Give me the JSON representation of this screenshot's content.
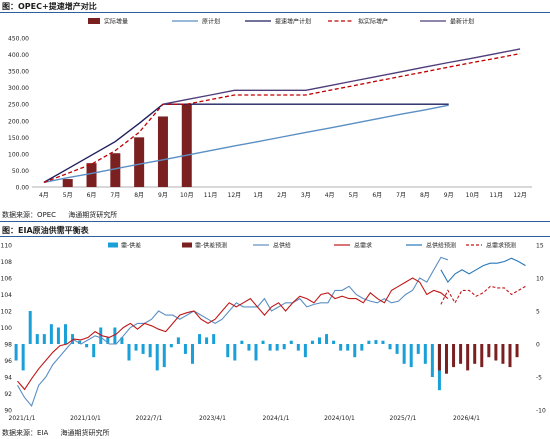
{
  "charts": {
    "top": {
      "title": "图：OPEC+提速增产对比",
      "source_label": "数据来源：OPEC",
      "source_org": "海通期货研究所"
    },
    "bottom": {
      "title": "图：EIA原油供需平衡表",
      "source_label": "数据来源：EIA",
      "source_org": "海通期货研究所"
    }
  },
  "colors": {
    "maroon": "#7b2020",
    "light_blue": "#5b8fc3",
    "navy": "#1f1f5f",
    "red_dash": "#c00000",
    "purple": "#4e3d7a",
    "cyan": "#1aa0d8",
    "red": "#c01818",
    "blue_line": "#2878b8"
  },
  "chart_data": [
    {
      "type": "bar+line",
      "categories": [
        "4月",
        "5月",
        "6月",
        "7月",
        "8月",
        "9月",
        "10月",
        "11月",
        "12月",
        "1月",
        "2月",
        "3月",
        "4月",
        "5月",
        "6月",
        "7月",
        "8月",
        "9月",
        "10月",
        "11月",
        "12月"
      ],
      "ylim": [
        0,
        450
      ],
      "yticks": [
        "0.00",
        "50.00",
        "100.00",
        "150.00",
        "200.00",
        "250.00",
        "300.00",
        "350.00",
        "400.00",
        "450.00"
      ],
      "legend": [
        "实际增量",
        "原计划",
        "提速增产计划",
        "拟实际增产",
        "最新计划"
      ],
      "series": [
        {
          "name": "实际增量",
          "kind": "bar",
          "values": [
            null,
            24,
            72,
            102,
            150,
            213,
            250,
            null,
            null,
            null,
            null,
            null,
            null,
            null,
            null,
            null,
            null,
            null,
            null,
            null,
            null
          ]
        },
        {
          "name": "原计划",
          "kind": "line",
          "values": [
            14,
            28,
            41,
            55,
            69,
            82,
            96,
            110,
            124,
            137,
            151,
            165,
            178,
            192,
            206,
            220,
            233,
            247,
            null,
            null,
            null
          ]
        },
        {
          "name": "提速增产计划",
          "kind": "line",
          "values": [
            14,
            55,
            96,
            137,
            192,
            250,
            250,
            250,
            250,
            250,
            250,
            250,
            250,
            250,
            250,
            250,
            250,
            250,
            null,
            null,
            null
          ]
        },
        {
          "name": "拟实际增产",
          "kind": "dashed",
          "values": [
            14,
            41,
            69,
            110,
            165,
            250,
            250,
            264,
            278,
            278,
            278,
            278,
            292,
            306,
            320,
            334,
            348,
            362,
            376,
            389,
            403
          ]
        },
        {
          "name": "最新计划",
          "kind": "line",
          "values": [
            null,
            null,
            null,
            null,
            null,
            250,
            264,
            278,
            292,
            292,
            292,
            292,
            306,
            320,
            334,
            348,
            362,
            376,
            389,
            403,
            417
          ]
        }
      ]
    },
    {
      "type": "bar+line",
      "x_labels": [
        "2021/1/1",
        "2021/10/1",
        "2022/7/1",
        "2023/4/1",
        "2024/1/1",
        "2024/10/1",
        "2025/7/1",
        "2026/4/1"
      ],
      "ylim": [
        90,
        110
      ],
      "y2lim": [
        -10,
        15
      ],
      "yticks": [
        "90",
        "92",
        "94",
        "96",
        "98",
        "100",
        "102",
        "104",
        "106",
        "108",
        "110"
      ],
      "y2ticks": [
        "-10",
        "-5",
        "0",
        "5",
        "10",
        "15"
      ],
      "legend": [
        "需-供差",
        "需-供差预测",
        "总供给",
        "总需求",
        "总供给预测",
        "总需求预测"
      ],
      "series": [
        {
          "name": "需-供差",
          "kind": "bar",
          "axis": "right",
          "start": "2021/1",
          "values": [
            -2.5,
            -4,
            5,
            1.5,
            1.5,
            3,
            2.5,
            3,
            1.5,
            0.5,
            -0.5,
            -2,
            2.5,
            1,
            2.5,
            1,
            -2.5,
            -1,
            -1.5,
            -2,
            -4,
            -3.5,
            -0.5,
            1,
            -1.5,
            -3,
            1.5,
            1,
            1.5,
            0,
            -2,
            -2.5,
            0.5,
            -1,
            -2.5,
            0.5,
            -1,
            -1,
            -0.8,
            0.5,
            -1,
            -2,
            0.5,
            1,
            1.5,
            0.5,
            -1,
            -1,
            -2,
            -1,
            0.5,
            0.6,
            0.5,
            -0.8,
            -1.5,
            -3,
            -3.5,
            -1.5,
            -3,
            -5,
            -7
          ]
        },
        {
          "name": "需-供差预测",
          "kind": "bar",
          "axis": "right",
          "start": "2026/1",
          "values": [
            -4,
            -4.5,
            -3.5,
            -3,
            -4,
            -3,
            -3.5,
            -2,
            -2.5,
            -3,
            -3.5,
            -2
          ]
        },
        {
          "name": "总供给",
          "kind": "line",
          "axis": "left",
          "start": "2021/1",
          "values": [
            93,
            91.5,
            90.5,
            93,
            94,
            95.5,
            96.5,
            97.5,
            98.5,
            98,
            98.5,
            99,
            98.7,
            98,
            98,
            99,
            100,
            100.5,
            100.5,
            101,
            102,
            101.5,
            101.5,
            101,
            101.5,
            102,
            101.5,
            101,
            100.5,
            101,
            102,
            103,
            102.5,
            102.5,
            102.5,
            103.5,
            102,
            102.5,
            103,
            103,
            103.5,
            102.5,
            102.8,
            103,
            103,
            104.5,
            104.5,
            105,
            104,
            103.5,
            103.2,
            103,
            103.5,
            103,
            103.2,
            104,
            104.5,
            106,
            105.5,
            107,
            108.5,
            108.2
          ]
        },
        {
          "name": "总需求",
          "kind": "line",
          "axis": "left",
          "start": "2021/1",
          "values": [
            93.5,
            92.5,
            93.8,
            95,
            96,
            97,
            97.8,
            98,
            98.6,
            98.5,
            98.8,
            99.5,
            99,
            98.8,
            99.2,
            100,
            100.5,
            99.8,
            100.5,
            100.2,
            99.8,
            99.5,
            100.5,
            101.5,
            101.8,
            102,
            101,
            100.5,
            101,
            102,
            103,
            102.5,
            103,
            103.5,
            102.5,
            101.5,
            102.5,
            103,
            102,
            103,
            103.8,
            103.5,
            103,
            104,
            104.2,
            103.5,
            103.8,
            103.5,
            103.5,
            103,
            104.2,
            103.5,
            103,
            104.5,
            105,
            105.5,
            106,
            105.5,
            104,
            104.5,
            104.2,
            103.5
          ]
        },
        {
          "name": "总供给预测",
          "kind": "line",
          "axis": "left",
          "start": "2026/1",
          "values": [
            107,
            105.5,
            106.5,
            107,
            106.5,
            107,
            107.5,
            107.8,
            107.8,
            108,
            108.4,
            108,
            107.5
          ]
        },
        {
          "name": "总需求预测",
          "kind": "dashed",
          "axis": "left",
          "start": "2026/1",
          "values": [
            102.8,
            104.5,
            103,
            104.5,
            104.5,
            103.8,
            104.2,
            105,
            104.8,
            104.8,
            104,
            104.5,
            105
          ]
        }
      ]
    }
  ]
}
